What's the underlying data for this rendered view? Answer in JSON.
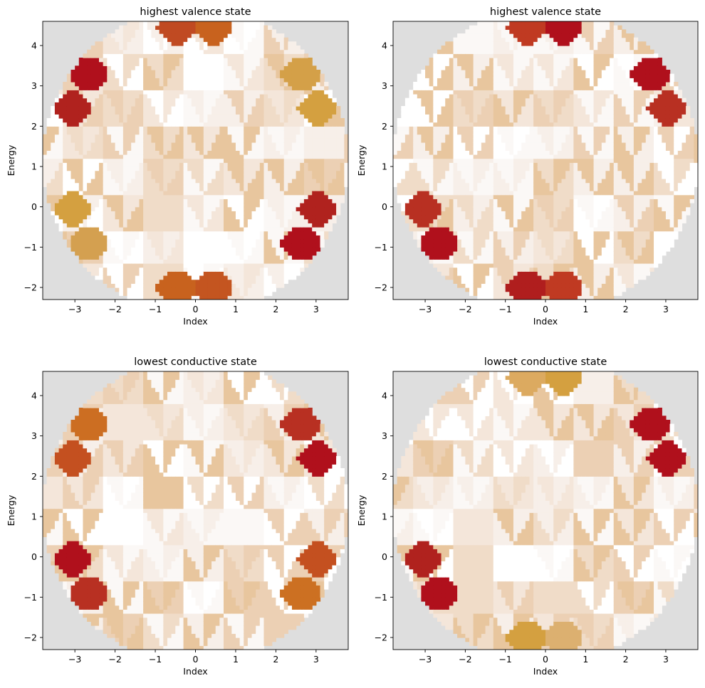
{
  "figure": {
    "background": "#ffffff",
    "axes_background": "#dedede"
  },
  "chart_data": [
    {
      "type": "heatmap",
      "title": "highest valence state",
      "xlabel": "Index",
      "ylabel": "Energy",
      "xlim": [
        -3.8,
        3.8
      ],
      "ylim": [
        -2.3,
        4.6
      ],
      "xticks": [
        -3,
        -2,
        -1,
        0,
        1,
        2,
        3
      ],
      "yticks": [
        -2,
        -1,
        0,
        1,
        2,
        3,
        4
      ],
      "grid": false,
      "legend": "none",
      "hotspots": [
        {
          "x": -0.45,
          "y": 4.45,
          "color": "#c04a22"
        },
        {
          "x": 0.45,
          "y": 4.45,
          "color": "#c8621e"
        },
        {
          "x": -2.65,
          "y": 3.3,
          "color": "#b0101c"
        },
        {
          "x": -3.05,
          "y": 2.45,
          "color": "#b0221e"
        },
        {
          "x": 2.65,
          "y": 3.3,
          "color": "#d4a048"
        },
        {
          "x": 3.05,
          "y": 2.45,
          "color": "#d4a040"
        },
        {
          "x": -3.05,
          "y": -0.05,
          "color": "#d4a040"
        },
        {
          "x": -2.65,
          "y": -0.9,
          "color": "#d4a050"
        },
        {
          "x": 3.05,
          "y": -0.05,
          "color": "#b0221e"
        },
        {
          "x": 2.65,
          "y": -0.9,
          "color": "#b0101c"
        },
        {
          "x": -0.45,
          "y": -2.0,
          "color": "#c8621e"
        },
        {
          "x": 0.45,
          "y": -2.0,
          "color": "#c45520"
        }
      ]
    },
    {
      "type": "heatmap",
      "title": "highest valence state",
      "xlabel": "Index",
      "ylabel": "Energy",
      "xlim": [
        -3.8,
        3.8
      ],
      "ylim": [
        -2.3,
        4.6
      ],
      "xticks": [
        -3,
        -2,
        -1,
        0,
        1,
        2,
        3
      ],
      "yticks": [
        -2,
        -1,
        0,
        1,
        2,
        3,
        4
      ],
      "grid": false,
      "legend": "none",
      "hotspots": [
        {
          "x": -0.45,
          "y": 4.45,
          "color": "#c03a22"
        },
        {
          "x": 0.45,
          "y": 4.45,
          "color": "#b0101c"
        },
        {
          "x": 2.65,
          "y": 3.3,
          "color": "#b0101c"
        },
        {
          "x": 3.05,
          "y": 2.45,
          "color": "#b83022"
        },
        {
          "x": -3.05,
          "y": -0.05,
          "color": "#b83022"
        },
        {
          "x": -2.65,
          "y": -0.9,
          "color": "#b0101c"
        },
        {
          "x": -0.45,
          "y": -2.0,
          "color": "#b01e1e"
        },
        {
          "x": 0.45,
          "y": -2.0,
          "color": "#c03a22"
        }
      ]
    },
    {
      "type": "heatmap",
      "title": "lowest conductive state",
      "xlabel": "Index",
      "ylabel": "Energy",
      "xlim": [
        -3.8,
        3.8
      ],
      "ylim": [
        -2.3,
        4.6
      ],
      "xticks": [
        -3,
        -2,
        -1,
        0,
        1,
        2,
        3
      ],
      "yticks": [
        -2,
        -1,
        0,
        1,
        2,
        3,
        4
      ],
      "grid": false,
      "legend": "none",
      "hotspots": [
        {
          "x": -2.65,
          "y": 3.3,
          "color": "#cc6e22"
        },
        {
          "x": -3.05,
          "y": 2.45,
          "color": "#c45020"
        },
        {
          "x": 2.65,
          "y": 3.3,
          "color": "#b83022"
        },
        {
          "x": 3.05,
          "y": 2.45,
          "color": "#b0101c"
        },
        {
          "x": -3.05,
          "y": -0.05,
          "color": "#b0101c"
        },
        {
          "x": -2.65,
          "y": -0.9,
          "color": "#b83022"
        },
        {
          "x": 3.05,
          "y": -0.05,
          "color": "#c45020"
        },
        {
          "x": 2.65,
          "y": -0.9,
          "color": "#cc7022"
        }
      ]
    },
    {
      "type": "heatmap",
      "title": "lowest conductive state",
      "xlabel": "Index",
      "ylabel": "Energy",
      "xlim": [
        -3.8,
        3.8
      ],
      "ylim": [
        -2.3,
        4.6
      ],
      "xticks": [
        -3,
        -2,
        -1,
        0,
        1,
        2,
        3
      ],
      "yticks": [
        -2,
        -1,
        0,
        1,
        2,
        3,
        4
      ],
      "grid": false,
      "legend": "none",
      "hotspots": [
        {
          "x": -0.45,
          "y": 4.45,
          "color": "#dcaa60"
        },
        {
          "x": 0.45,
          "y": 4.45,
          "color": "#d4a040"
        },
        {
          "x": 2.65,
          "y": 3.3,
          "color": "#b0101c"
        },
        {
          "x": 3.05,
          "y": 2.45,
          "color": "#b0101c"
        },
        {
          "x": -3.05,
          "y": -0.05,
          "color": "#b0221e"
        },
        {
          "x": -2.65,
          "y": -0.9,
          "color": "#b0101c"
        },
        {
          "x": -0.45,
          "y": -2.0,
          "color": "#d4a040"
        },
        {
          "x": 0.45,
          "y": -2.0,
          "color": "#dcb070"
        }
      ]
    }
  ]
}
